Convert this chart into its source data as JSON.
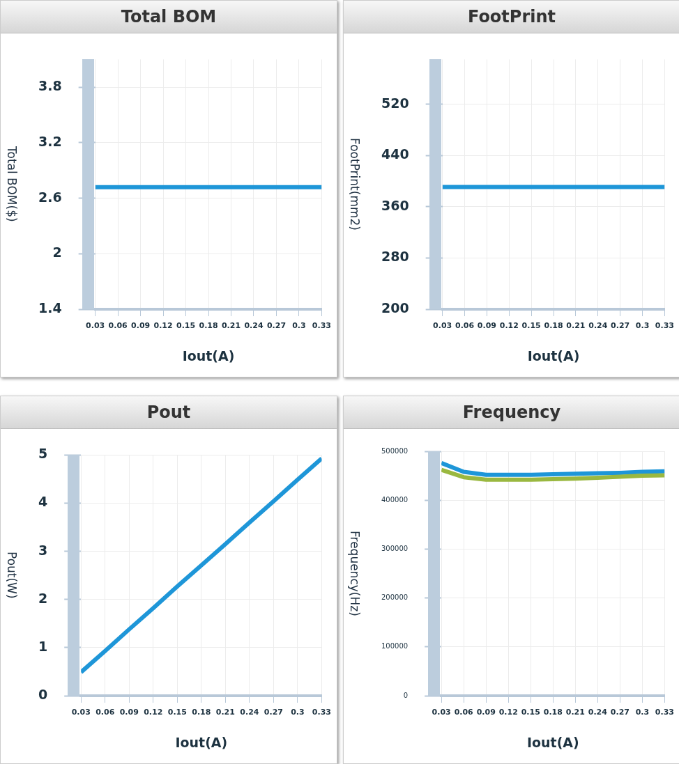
{
  "chart_data": [
    {
      "type": "line",
      "title": "Total BOM",
      "xlabel": "Iout(A)",
      "ylabel": "Total BOM($)",
      "x": [
        0.03,
        0.06,
        0.09,
        0.12,
        0.15,
        0.18,
        0.21,
        0.24,
        0.27,
        0.3,
        0.33
      ],
      "series": [
        {
          "color": "#1e96d8",
          "values": [
            2.72,
            2.72,
            2.72,
            2.72,
            2.72,
            2.72,
            2.72,
            2.72,
            2.72,
            2.72,
            2.72
          ]
        }
      ],
      "xlim": [
        0.03,
        0.33
      ],
      "xticks": [
        0.03,
        0.06,
        0.09,
        0.12,
        0.15,
        0.18,
        0.21,
        0.24,
        0.27,
        0.3,
        0.33
      ],
      "ylim": [
        1.4,
        4.1
      ],
      "yticks": [
        1.4,
        2,
        2.6,
        3.2,
        3.8
      ],
      "grid": true,
      "legend": false
    },
    {
      "type": "line",
      "title": "FootPrint",
      "xlabel": "Iout(A)",
      "ylabel": "FootPrint(mm2)",
      "x": [
        0.03,
        0.06,
        0.09,
        0.12,
        0.15,
        0.18,
        0.21,
        0.24,
        0.27,
        0.3,
        0.33
      ],
      "series": [
        {
          "color": "#1e96d8",
          "values": [
            391,
            391,
            391,
            391,
            391,
            391,
            391,
            391,
            391,
            391,
            391
          ]
        }
      ],
      "xlim": [
        0.03,
        0.33
      ],
      "xticks": [
        0.03,
        0.06,
        0.09,
        0.12,
        0.15,
        0.18,
        0.21,
        0.24,
        0.27,
        0.3,
        0.33
      ],
      "ylim": [
        200,
        590
      ],
      "yticks": [
        200,
        280,
        360,
        440,
        520
      ],
      "grid": true,
      "legend": false
    },
    {
      "type": "line",
      "title": "Pout",
      "xlabel": "Iout(A)",
      "ylabel": "Pout(W)",
      "x": [
        0.03,
        0.06,
        0.09,
        0.12,
        0.15,
        0.18,
        0.21,
        0.24,
        0.27,
        0.3,
        0.33
      ],
      "series": [
        {
          "color": "#1e96d8",
          "values": [
            0.49,
            0.93,
            1.38,
            1.82,
            2.27,
            2.71,
            3.15,
            3.6,
            4.04,
            4.49,
            4.93
          ]
        }
      ],
      "xlim": [
        0.03,
        0.33
      ],
      "xticks": [
        0.03,
        0.06,
        0.09,
        0.12,
        0.15,
        0.18,
        0.21,
        0.24,
        0.27,
        0.3,
        0.33
      ],
      "ylim": [
        0,
        5
      ],
      "yticks": [
        0,
        1,
        2,
        3,
        4,
        5
      ],
      "grid": true,
      "legend": false
    },
    {
      "type": "line",
      "title": "Frequency",
      "xlabel": "Iout(A)",
      "ylabel": "Frequency(Hz)",
      "x": [
        0.03,
        0.06,
        0.09,
        0.12,
        0.15,
        0.18,
        0.21,
        0.24,
        0.27,
        0.3,
        0.33
      ],
      "series": [
        {
          "color": "#9ab840",
          "values": [
            462000,
            447000,
            442000,
            442000,
            442000,
            443000,
            444000,
            446000,
            448000,
            450000,
            451000
          ]
        },
        {
          "color": "#1e96d8",
          "values": [
            476000,
            458000,
            452000,
            452000,
            452000,
            453000,
            454000,
            455000,
            456000,
            458000,
            459000
          ]
        }
      ],
      "xlim": [
        0.03,
        0.33
      ],
      "xticks": [
        0.03,
        0.06,
        0.09,
        0.12,
        0.15,
        0.18,
        0.21,
        0.24,
        0.27,
        0.3,
        0.33
      ],
      "ylim": [
        0,
        500000
      ],
      "yticks": [
        0,
        100000,
        200000,
        300000,
        400000,
        500000
      ],
      "grid": true,
      "legend": false
    }
  ]
}
